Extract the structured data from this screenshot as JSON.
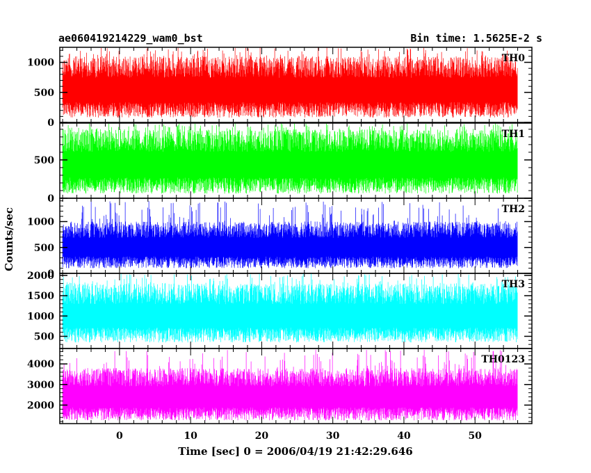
{
  "chart_data": {
    "type": "line",
    "title_left": "ae060419214229_wam0_bst",
    "title_right": "Bin time: 1.5625E-2 s",
    "xlabel": "Time [sec] 0 = 2006/04/19 21:42:29.646",
    "ylabel": "Counts/sec",
    "xlim": [
      -8.4,
      58
    ],
    "x_ticks": [
      0,
      10,
      20,
      30,
      40,
      50
    ],
    "x_minor_step": 2,
    "data_x_range": [
      -8,
      56
    ],
    "panels": [
      {
        "name": "TH0",
        "color": "#ff0000",
        "ylim": [
          0,
          1250
        ],
        "y_ticks": [
          0,
          500,
          1000
        ],
        "y_minor_step": 100,
        "typical_range": [
          80,
          1100
        ],
        "spike_max": 1250
      },
      {
        "name": "TH1",
        "color": "#00ff00",
        "ylim": [
          0,
          980
        ],
        "y_ticks": [
          0,
          500
        ],
        "y_minor_step": 100,
        "typical_range": [
          60,
          900
        ],
        "spike_max": 980
      },
      {
        "name": "TH2",
        "color": "#0000ff",
        "ylim": [
          0,
          1450
        ],
        "y_ticks": [
          0,
          500,
          1000
        ],
        "y_minor_step": 100,
        "typical_range": [
          100,
          1000
        ],
        "spike_max": 1400
      },
      {
        "name": "TH3",
        "color": "#00ffff",
        "ylim": [
          200,
          2050
        ],
        "y_ticks": [
          500,
          1000,
          1500,
          2000
        ],
        "y_minor_step": 100,
        "typical_range": [
          350,
          1800
        ],
        "spike_max": 2050
      },
      {
        "name": "TH0123",
        "color": "#ff00ff",
        "ylim": [
          1100,
          4750
        ],
        "y_ticks": [
          2000,
          3000,
          4000
        ],
        "y_minor_step": 200,
        "typical_range": [
          1250,
          3800
        ],
        "spike_max": 4700
      }
    ]
  }
}
